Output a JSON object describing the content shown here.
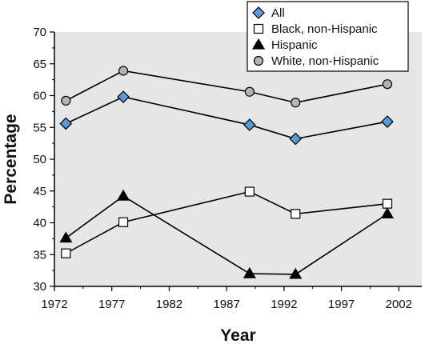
{
  "chart_data": {
    "type": "line",
    "title": "",
    "xlabel": "Year",
    "ylabel": "Percentage",
    "xlim": [
      1972,
      2004
    ],
    "ylim": [
      30,
      70
    ],
    "xticks": [
      1972,
      1977,
      1982,
      1987,
      1992,
      1997,
      2002
    ],
    "yticks": [
      30,
      35,
      40,
      45,
      50,
      55,
      60,
      65,
      70
    ],
    "grid": false,
    "legend_position": "top-right",
    "background_color": "#e6e6e6",
    "series": [
      {
        "name": "All",
        "marker": "diamond",
        "color": "#5b9bd5",
        "x": [
          1973,
          1978,
          1989,
          1993,
          2001
        ],
        "y": [
          55.6,
          59.8,
          55.4,
          53.2,
          55.9
        ]
      },
      {
        "name": "Black, non-Hispanic",
        "marker": "square",
        "color": "#ffffff",
        "x": [
          1973,
          1978,
          1989,
          1993,
          2001
        ],
        "y": [
          35.2,
          40.1,
          44.9,
          41.4,
          43.0
        ]
      },
      {
        "name": "Hispanic",
        "marker": "triangle",
        "color": "#000000",
        "x": [
          1973,
          1978,
          1989,
          1993,
          2001
        ],
        "y": [
          37.6,
          44.2,
          32.0,
          31.9,
          41.4
        ]
      },
      {
        "name": "White, non-Hispanic",
        "marker": "circle",
        "color": "#b3b3b3",
        "x": [
          1973,
          1978,
          1989,
          1993,
          2001
        ],
        "y": [
          59.2,
          63.9,
          60.6,
          58.9,
          61.8
        ]
      }
    ]
  }
}
